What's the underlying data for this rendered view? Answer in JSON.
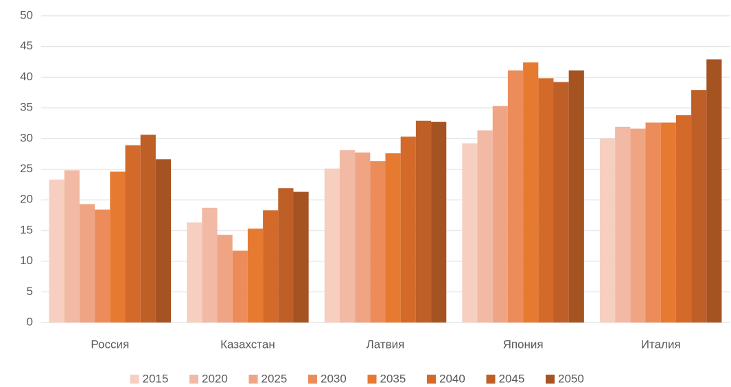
{
  "chart_data": {
    "type": "bar",
    "categories": [
      "Россия",
      "Казахстан",
      "Латвия",
      "Япония",
      "Италия"
    ],
    "series": [
      {
        "name": "2015",
        "color": "#f6cfc1",
        "values": [
          23.3,
          16.3,
          25.1,
          29.2,
          30.0
        ]
      },
      {
        "name": "2020",
        "color": "#f2b9a4",
        "values": [
          24.8,
          18.7,
          28.1,
          31.3,
          31.9
        ]
      },
      {
        "name": "2025",
        "color": "#efa584",
        "values": [
          19.3,
          14.3,
          27.7,
          35.3,
          31.6
        ]
      },
      {
        "name": "2030",
        "color": "#ec8c5a",
        "values": [
          18.4,
          11.7,
          26.3,
          41.1,
          32.6
        ]
      },
      {
        "name": "2035",
        "color": "#e77a31",
        "values": [
          24.6,
          15.3,
          27.6,
          42.4,
          32.6
        ]
      },
      {
        "name": "2040",
        "color": "#d36a2a",
        "values": [
          28.9,
          18.3,
          30.3,
          39.8,
          33.8
        ]
      },
      {
        "name": "2045",
        "color": "#bd5f27",
        "values": [
          30.6,
          21.9,
          32.9,
          39.2,
          37.9
        ]
      },
      {
        "name": "2050",
        "color": "#a65322",
        "values": [
          26.6,
          21.3,
          32.7,
          41.1,
          42.9
        ]
      }
    ],
    "ylim": [
      0,
      50
    ],
    "yticks": [
      0,
      5,
      10,
      15,
      20,
      25,
      30,
      35,
      40,
      45,
      50
    ],
    "grid": true,
    "legend": "bottom"
  }
}
